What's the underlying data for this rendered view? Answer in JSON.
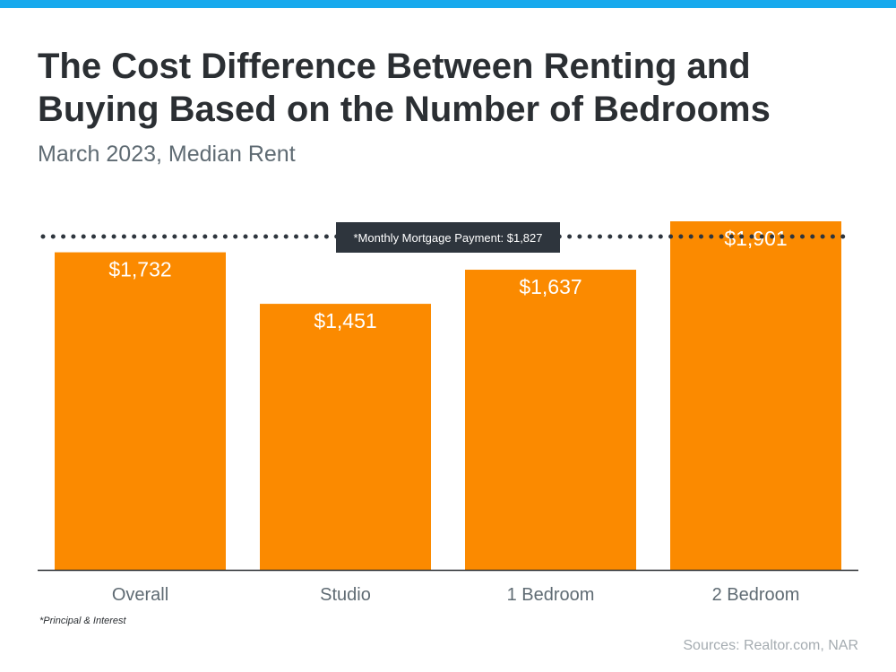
{
  "header": {
    "title_line1": "The Cost Difference Between Renting and",
    "title_line2": "Buying Based on the Number of Bedrooms",
    "subtitle": "March 2023, Median Rent"
  },
  "chart_data": {
    "type": "bar",
    "title": "The Cost Difference Between Renting and Buying Based on the Number of Bedrooms",
    "subtitle": "March 2023, Median Rent",
    "categories": [
      "Overall",
      "Studio",
      "1 Bedroom",
      "2 Bedroom"
    ],
    "values": [
      1732,
      1451,
      1637,
      1901
    ],
    "data_labels": [
      "$1,732",
      "$1,451",
      "$1,637",
      "$1,901"
    ],
    "ylim": [
      0,
      1901
    ],
    "grid": false,
    "bar_color": "#fb8a00",
    "reference_line": {
      "value": 1827,
      "label": "*Monthly Mortgage Payment: $1,827",
      "style": "dotted",
      "color": "#2e353d"
    }
  },
  "footer": {
    "note": "*Principal & Interest",
    "source": "Sources: Realtor.com, NAR"
  },
  "colors": {
    "accent_stripe": "#17a9ed",
    "label_box": "#2e353d",
    "axis": "#2b2f33"
  }
}
